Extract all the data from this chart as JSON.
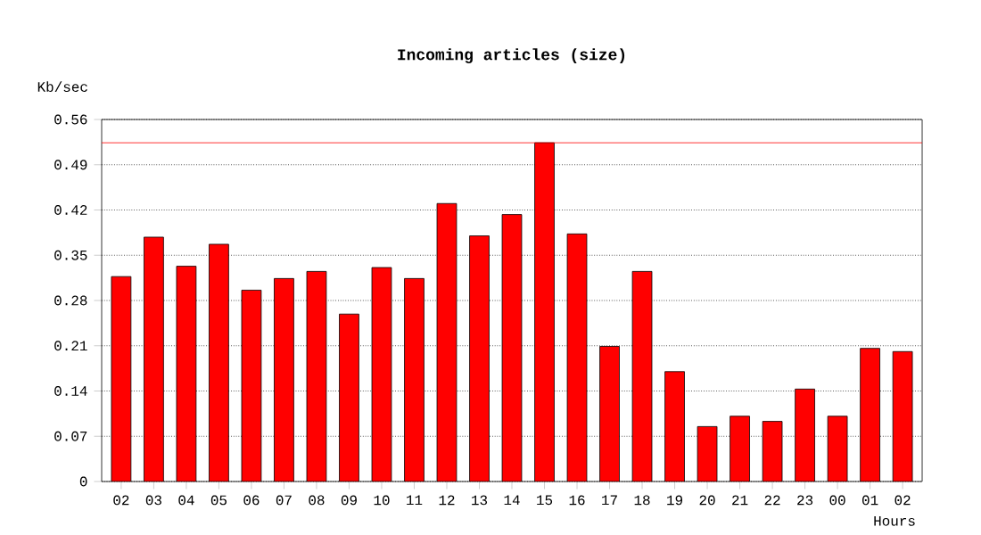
{
  "chart_data": {
    "type": "bar",
    "title": "Incoming articles (size)",
    "xlabel": "Hours",
    "ylabel": "Kb/sec",
    "categories": [
      "02",
      "03",
      "04",
      "05",
      "06",
      "07",
      "08",
      "09",
      "10",
      "11",
      "12",
      "13",
      "14",
      "15",
      "16",
      "17",
      "18",
      "19",
      "20",
      "21",
      "22",
      "23",
      "00",
      "01",
      "02"
    ],
    "values": [
      0.317,
      0.378,
      0.333,
      0.367,
      0.296,
      0.314,
      0.325,
      0.259,
      0.331,
      0.314,
      0.43,
      0.38,
      0.413,
      0.524,
      0.383,
      0.209,
      0.325,
      0.17,
      0.085,
      0.101,
      0.093,
      0.143,
      0.101,
      0.206,
      0.201
    ],
    "color": "#ff0000",
    "ylim": [
      0,
      0.56
    ],
    "yticks": [
      0,
      0.07,
      0.14,
      0.21,
      0.28,
      0.35,
      0.42,
      0.49,
      0.56
    ],
    "grid": "y",
    "ref_lines": [
      {
        "axis": "y",
        "value": 0.524,
        "color": "#ff0000"
      }
    ]
  }
}
